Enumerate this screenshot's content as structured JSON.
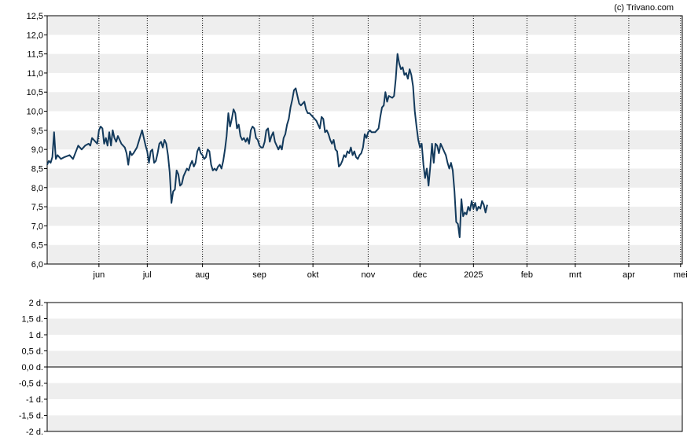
{
  "credit": "(c) Trivano.com",
  "chart_data": [
    {
      "type": "line",
      "title": "",
      "xlabel": "",
      "ylabel": "",
      "ylim": [
        6.0,
        12.5
      ],
      "yticks": [
        "6,0",
        "6,5",
        "7,0",
        "7,5",
        "8,0",
        "8,5",
        "9,0",
        "9,5",
        "10,0",
        "10,5",
        "11,0",
        "11,5",
        "12,0",
        "12,5"
      ],
      "xlim": [
        0,
        368
      ],
      "month_ticks": [
        {
          "label": "jun",
          "x": 30
        },
        {
          "label": "jul",
          "x": 58
        },
        {
          "label": "aug",
          "x": 90
        },
        {
          "label": "sep",
          "x": 123
        },
        {
          "label": "okt",
          "x": 154
        },
        {
          "label": "nov",
          "x": 186
        },
        {
          "label": "dec",
          "x": 216
        },
        {
          "label": "2025",
          "x": 247
        },
        {
          "label": "feb",
          "x": 278
        },
        {
          "label": "mrt",
          "x": 306
        },
        {
          "label": "apr",
          "x": 337
        },
        {
          "label": "mei",
          "x": 367
        }
      ],
      "grid": "horizontal bands, vertical dotted lines at month ticks",
      "series": [
        {
          "color": "#133a5c",
          "points": [
            [
              0,
              8.6
            ],
            [
              1,
              8.7
            ],
            [
              2,
              8.65
            ],
            [
              3,
              8.8
            ],
            [
              4,
              9.45
            ],
            [
              5,
              8.75
            ],
            [
              6,
              8.85
            ],
            [
              8,
              8.75
            ],
            [
              10,
              8.8
            ],
            [
              13,
              8.85
            ],
            [
              15,
              8.75
            ],
            [
              18,
              9.1
            ],
            [
              20,
              9.0
            ],
            [
              22,
              9.1
            ],
            [
              24,
              9.15
            ],
            [
              25,
              9.1
            ],
            [
              26,
              9.3
            ],
            [
              28,
              9.2
            ],
            [
              29,
              9.15
            ],
            [
              30,
              9.5
            ],
            [
              31,
              9.6
            ],
            [
              32,
              9.55
            ],
            [
              33,
              9.15
            ],
            [
              34,
              9.3
            ],
            [
              35,
              9.1
            ],
            [
              36,
              9.45
            ],
            [
              37,
              9.1
            ],
            [
              38,
              9.5
            ],
            [
              39,
              9.3
            ],
            [
              40,
              9.2
            ],
            [
              41,
              9.35
            ],
            [
              42,
              9.25
            ],
            [
              43,
              9.15
            ],
            [
              45,
              9.05
            ],
            [
              46,
              8.9
            ],
            [
              47,
              8.6
            ],
            [
              48,
              8.95
            ],
            [
              49,
              8.85
            ],
            [
              50,
              8.9
            ],
            [
              52,
              9.05
            ],
            [
              54,
              9.35
            ],
            [
              55,
              9.5
            ],
            [
              56,
              9.3
            ],
            [
              57,
              9.1
            ],
            [
              58,
              8.95
            ],
            [
              59,
              8.65
            ],
            [
              60,
              8.95
            ],
            [
              61,
              9.0
            ],
            [
              62,
              8.65
            ],
            [
              63,
              8.7
            ],
            [
              64,
              8.9
            ],
            [
              65,
              9.15
            ],
            [
              66,
              9.2
            ],
            [
              67,
              9.05
            ],
            [
              68,
              9.25
            ],
            [
              69,
              9.15
            ],
            [
              70,
              8.85
            ],
            [
              71,
              8.4
            ],
            [
              72,
              7.6
            ],
            [
              73,
              7.9
            ],
            [
              74,
              7.95
            ],
            [
              75,
              8.45
            ],
            [
              76,
              8.35
            ],
            [
              77,
              8.05
            ],
            [
              78,
              8.1
            ],
            [
              79,
              8.3
            ],
            [
              80,
              8.4
            ],
            [
              81,
              8.5
            ],
            [
              82,
              8.45
            ],
            [
              83,
              8.6
            ],
            [
              84,
              8.7
            ],
            [
              85,
              8.55
            ],
            [
              86,
              8.65
            ],
            [
              87,
              8.95
            ],
            [
              88,
              9.05
            ],
            [
              89,
              8.9
            ],
            [
              90,
              8.85
            ],
            [
              91,
              8.75
            ],
            [
              92,
              8.8
            ],
            [
              93,
              9.0
            ],
            [
              94,
              8.95
            ],
            [
              95,
              8.6
            ],
            [
              96,
              8.45
            ],
            [
              97,
              8.5
            ],
            [
              98,
              8.45
            ],
            [
              99,
              8.55
            ],
            [
              100,
              8.6
            ],
            [
              101,
              8.5
            ],
            [
              102,
              8.7
            ],
            [
              103,
              9.0
            ],
            [
              104,
              9.35
            ],
            [
              105,
              9.95
            ],
            [
              106,
              9.6
            ],
            [
              107,
              9.8
            ],
            [
              108,
              10.05
            ],
            [
              109,
              9.95
            ],
            [
              110,
              9.55
            ],
            [
              111,
              9.65
            ],
            [
              112,
              9.35
            ],
            [
              113,
              9.25
            ],
            [
              114,
              9.3
            ],
            [
              115,
              9.2
            ],
            [
              116,
              9.3
            ],
            [
              117,
              9.15
            ],
            [
              118,
              9.5
            ],
            [
              119,
              9.6
            ],
            [
              120,
              9.55
            ],
            [
              121,
              9.3
            ],
            [
              122,
              9.25
            ],
            [
              123,
              9.1
            ],
            [
              124,
              9.05
            ],
            [
              125,
              9.05
            ],
            [
              126,
              9.2
            ],
            [
              127,
              9.5
            ],
            [
              128,
              9.55
            ],
            [
              129,
              9.2
            ],
            [
              130,
              9.35
            ],
            [
              131,
              9.45
            ],
            [
              132,
              9.2
            ],
            [
              133,
              9.1
            ],
            [
              134,
              9.0
            ],
            [
              135,
              9.1
            ],
            [
              136,
              9.0
            ],
            [
              137,
              9.3
            ],
            [
              138,
              9.4
            ],
            [
              139,
              9.65
            ],
            [
              140,
              9.8
            ],
            [
              141,
              10.1
            ],
            [
              142,
              10.3
            ],
            [
              143,
              10.55
            ],
            [
              144,
              10.6
            ],
            [
              145,
              10.4
            ],
            [
              146,
              10.2
            ],
            [
              147,
              10.15
            ],
            [
              148,
              10.2
            ],
            [
              149,
              10.25
            ],
            [
              150,
              10.05
            ],
            [
              151,
              9.95
            ],
            [
              152,
              9.95
            ],
            [
              153,
              9.9
            ],
            [
              154,
              9.85
            ],
            [
              155,
              9.8
            ],
            [
              156,
              9.75
            ],
            [
              157,
              9.65
            ],
            [
              158,
              9.55
            ],
            [
              159,
              9.85
            ],
            [
              160,
              9.8
            ],
            [
              161,
              9.45
            ],
            [
              162,
              9.5
            ],
            [
              163,
              9.4
            ],
            [
              164,
              9.25
            ],
            [
              165,
              9.15
            ],
            [
              166,
              9.25
            ],
            [
              167,
              9.0
            ],
            [
              168,
              8.95
            ],
            [
              169,
              8.55
            ],
            [
              170,
              8.6
            ],
            [
              171,
              8.7
            ],
            [
              172,
              8.85
            ],
            [
              173,
              8.8
            ],
            [
              174,
              8.95
            ],
            [
              175,
              8.9
            ],
            [
              176,
              9.05
            ],
            [
              177,
              8.85
            ],
            [
              178,
              8.95
            ],
            [
              179,
              8.8
            ],
            [
              180,
              8.75
            ],
            [
              181,
              8.85
            ],
            [
              182,
              8.9
            ],
            [
              183,
              9.05
            ],
            [
              184,
              9.4
            ],
            [
              185,
              9.3
            ],
            [
              186,
              9.45
            ],
            [
              187,
              9.5
            ],
            [
              188,
              9.45
            ],
            [
              190,
              9.45
            ],
            [
              192,
              9.55
            ],
            [
              193,
              9.85
            ],
            [
              194,
              10.1
            ],
            [
              195,
              10.15
            ],
            [
              196,
              10.5
            ],
            [
              197,
              10.25
            ],
            [
              198,
              10.4
            ],
            [
              200,
              10.35
            ],
            [
              201,
              10.4
            ],
            [
              202,
              10.85
            ],
            [
              203,
              11.5
            ],
            [
              204,
              11.25
            ],
            [
              205,
              11.1
            ],
            [
              206,
              11.15
            ],
            [
              207,
              10.95
            ],
            [
              208,
              11.0
            ],
            [
              209,
              10.85
            ],
            [
              210,
              11.1
            ],
            [
              211,
              10.95
            ],
            [
              212,
              10.65
            ],
            [
              213,
              10.0
            ],
            [
              214,
              9.6
            ],
            [
              215,
              9.25
            ],
            [
              216,
              9.05
            ],
            [
              217,
              9.15
            ],
            [
              218,
              8.6
            ],
            [
              219,
              8.25
            ],
            [
              220,
              8.5
            ],
            [
              221,
              8.05
            ],
            [
              222,
              8.55
            ],
            [
              223,
              9.15
            ],
            [
              224,
              8.65
            ],
            [
              225,
              9.15
            ],
            [
              226,
              9.1
            ],
            [
              227,
              8.9
            ],
            [
              228,
              9.15
            ],
            [
              229,
              9.05
            ],
            [
              230,
              8.95
            ],
            [
              231,
              8.85
            ],
            [
              232,
              8.65
            ],
            [
              233,
              8.5
            ],
            [
              234,
              8.65
            ],
            [
              235,
              8.45
            ],
            [
              236,
              7.9
            ],
            [
              237,
              7.1
            ],
            [
              238,
              7.05
            ],
            [
              239,
              6.7
            ],
            [
              240,
              7.7
            ],
            [
              241,
              7.25
            ],
            [
              242,
              7.35
            ],
            [
              243,
              7.3
            ],
            [
              244,
              7.5
            ],
            [
              245,
              7.4
            ],
            [
              246,
              7.65
            ],
            [
              247,
              7.45
            ],
            [
              248,
              7.6
            ],
            [
              249,
              7.4
            ],
            [
              250,
              7.5
            ],
            [
              251,
              7.45
            ],
            [
              252,
              7.65
            ],
            [
              253,
              7.55
            ],
            [
              254,
              7.35
            ],
            [
              255,
              7.55
            ]
          ]
        }
      ]
    },
    {
      "type": "line",
      "title": "",
      "ylim": [
        -2,
        2
      ],
      "yticks": [
        "-2 d.",
        "-1,5 d.",
        "-1 d.",
        "-0,5 d.",
        "0,0 d.",
        "0,5 d.",
        "1 d.",
        "1,5 d.",
        "2 d."
      ],
      "grid": "horizontal bands, zero line",
      "series": []
    }
  ]
}
